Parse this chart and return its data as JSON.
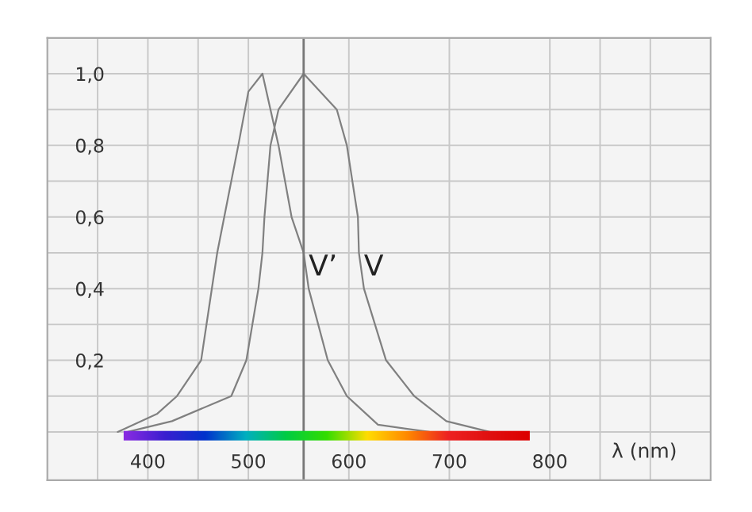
{
  "chart_data": {
    "type": "line",
    "xlabel": "λ (nm)",
    "series": [
      {
        "color": "#808080",
        "x": [
          370,
          409,
          429,
          453,
          469,
          476,
          490,
          500,
          514,
          530,
          543,
          555,
          560,
          579,
          598,
          629,
          680
        ],
        "values": [
          0,
          0.05,
          0.1,
          0.2,
          0.5,
          0.6,
          0.8,
          0.95,
          1.0,
          0.8,
          0.6,
          0.5,
          0.4,
          0.2,
          0.1,
          0.02,
          0
        ]
      },
      {
        "color": "#808080",
        "x": [
          380,
          424,
          483,
          498,
          510,
          514,
          516,
          522,
          530,
          555,
          588,
          598,
          609,
          610,
          615,
          637,
          665,
          697,
          740
        ],
        "values": [
          0,
          0.03,
          0.1,
          0.2,
          0.4,
          0.5,
          0.6,
          0.8,
          0.9,
          1.0,
          0.9,
          0.8,
          0.6,
          0.5,
          0.4,
          0.2,
          0.1,
          0.03,
          0
        ]
      }
    ],
    "annotations": [
      {
        "text": "V’",
        "x": 560,
        "y": 0.42
      },
      {
        "text": "V",
        "x": 615,
        "y": 0.42
      }
    ],
    "ref_lines": [
      {
        "axis": "x",
        "value": 555,
        "color": "#777777"
      }
    ],
    "xlim": [
      300,
      960
    ],
    "xticks": [
      {
        "value": 350,
        "label": null
      },
      400,
      {
        "value": 450,
        "label": null
      },
      500,
      600,
      700,
      800,
      {
        "value": 850,
        "label": null
      },
      {
        "value": 900,
        "label": null
      }
    ],
    "ylim": [
      -0.135,
      1.1
    ],
    "yticks": [
      {
        "value": 0,
        "label": null
      },
      {
        "value": 0.1,
        "label": null
      },
      {
        "value": 0.2,
        "label": "0,2"
      },
      {
        "value": 0.3,
        "label": null
      },
      {
        "value": 0.4,
        "label": "0,4"
      },
      {
        "value": 0.5,
        "label": null
      },
      {
        "value": 0.6,
        "label": "0,6"
      },
      {
        "value": 0.7,
        "label": null
      },
      {
        "value": 0.8,
        "label": "0,8"
      },
      {
        "value": 0.9,
        "label": null
      },
      {
        "value": 1.0,
        "label": "1,0"
      }
    ],
    "grid": true,
    "legend": false
  }
}
